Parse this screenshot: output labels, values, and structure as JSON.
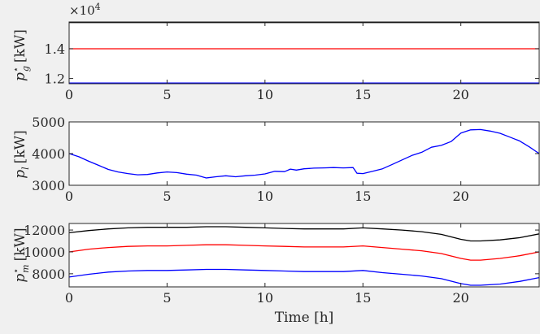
{
  "chart_data": [
    {
      "type": "line",
      "title": "",
      "xlabel": "",
      "ylabel": "p_g^⋆ [kW]",
      "ylabel_parts": {
        "base": "p",
        "sub": "g",
        "sup": "⋆",
        "unit": "[kW]"
      },
      "y_exponent_label": {
        "base": "×10",
        "power": "4"
      },
      "xlim": [
        0,
        24
      ],
      "ylim": [
        11650,
        15800
      ],
      "xticks": [
        0,
        5,
        10,
        15,
        20
      ],
      "xtick_labels": [
        "0",
        "5",
        "10",
        "15",
        "20"
      ],
      "yticks": [
        12000,
        14000
      ],
      "ytick_labels": [
        "1.2",
        "1.4"
      ],
      "grid": false,
      "series": [
        {
          "color": "#000000",
          "x": [
            0,
            24
          ],
          "y": [
            15760,
            15760
          ]
        },
        {
          "color": "#ff0000",
          "x": [
            0,
            24
          ],
          "y": [
            14000,
            14000
          ]
        },
        {
          "color": "#0000ff",
          "x": [
            0,
            24
          ],
          "y": [
            11700,
            11700
          ]
        }
      ]
    },
    {
      "type": "line",
      "title": "",
      "xlabel": "",
      "ylabel": "p_l [kW]",
      "ylabel_parts": {
        "base": "p",
        "sub": "l",
        "sup": "",
        "unit": "[kW]"
      },
      "xlim": [
        0,
        24
      ],
      "ylim": [
        3000,
        5000
      ],
      "xticks": [
        0,
        5,
        10,
        15,
        20
      ],
      "xtick_labels": [
        "0",
        "5",
        "10",
        "15",
        "20"
      ],
      "yticks": [
        3000,
        4000,
        5000
      ],
      "ytick_labels": [
        "3000",
        "4000",
        "5000"
      ],
      "grid": false,
      "series": [
        {
          "color": "#0000ff",
          "x": [
            0,
            0.5,
            1,
            1.5,
            2,
            2.5,
            3,
            3.5,
            4,
            4.5,
            5,
            5.5,
            6,
            6.5,
            7,
            7.5,
            8,
            8.5,
            9,
            9.5,
            10,
            10.5,
            11,
            11.3,
            11.6,
            12,
            12.5,
            13,
            13.5,
            14,
            14.5,
            14.7,
            15,
            15.5,
            16,
            16.5,
            17,
            17.5,
            18,
            18.5,
            19,
            19.5,
            20,
            20.5,
            21,
            21.5,
            22,
            22.5,
            23,
            23.5,
            24
          ],
          "y": [
            4000,
            3900,
            3760,
            3630,
            3500,
            3420,
            3370,
            3330,
            3340,
            3390,
            3420,
            3400,
            3350,
            3320,
            3230,
            3270,
            3300,
            3270,
            3300,
            3320,
            3360,
            3440,
            3430,
            3510,
            3480,
            3520,
            3540,
            3550,
            3560,
            3550,
            3560,
            3380,
            3370,
            3440,
            3520,
            3660,
            3800,
            3940,
            4040,
            4200,
            4260,
            4380,
            4650,
            4750,
            4760,
            4710,
            4640,
            4520,
            4400,
            4210,
            4000
          ]
        }
      ]
    },
    {
      "type": "line",
      "title": "",
      "xlabel": "Time [h]",
      "ylabel": "p_m^⋆ [kW]",
      "ylabel_parts": {
        "base": "p",
        "sub": "m",
        "sup": "⋆",
        "unit": "[kW]"
      },
      "xlim": [
        0,
        24
      ],
      "ylim": [
        6800,
        12600
      ],
      "xticks": [
        0,
        5,
        10,
        15,
        20
      ],
      "xtick_labels": [
        "0",
        "5",
        "10",
        "15",
        "20"
      ],
      "yticks": [
        8000,
        10000,
        12000
      ],
      "ytick_labels": [
        "8000",
        "10000",
        "12000"
      ],
      "grid": false,
      "series": [
        {
          "color": "#000000",
          "x": [
            0,
            1,
            2,
            3,
            4,
            5,
            6,
            7,
            8,
            9,
            10,
            11,
            12,
            13,
            14,
            15,
            16,
            17,
            18,
            19,
            20,
            20.5,
            21,
            22,
            23,
            24
          ],
          "y": [
            11750,
            11950,
            12100,
            12200,
            12250,
            12250,
            12250,
            12300,
            12300,
            12250,
            12200,
            12150,
            12100,
            12100,
            12100,
            12200,
            12100,
            12000,
            11850,
            11600,
            11150,
            11000,
            11000,
            11100,
            11300,
            11650
          ]
        },
        {
          "color": "#ff0000",
          "x": [
            0,
            1,
            2,
            3,
            4,
            5,
            6,
            7,
            8,
            9,
            10,
            11,
            12,
            13,
            14,
            15,
            16,
            17,
            18,
            19,
            20,
            20.5,
            21,
            22,
            23,
            24
          ],
          "y": [
            10000,
            10250,
            10400,
            10500,
            10550,
            10550,
            10600,
            10650,
            10650,
            10600,
            10550,
            10500,
            10450,
            10450,
            10450,
            10550,
            10400,
            10250,
            10100,
            9850,
            9400,
            9250,
            9250,
            9400,
            9650,
            10000
          ]
        },
        {
          "color": "#0000ff",
          "x": [
            0,
            1,
            2,
            3,
            4,
            5,
            6,
            7,
            8,
            9,
            10,
            11,
            12,
            13,
            14,
            15,
            16,
            17,
            18,
            19,
            20,
            20.5,
            21,
            22,
            23,
            24
          ],
          "y": [
            7700,
            7950,
            8150,
            8250,
            8300,
            8300,
            8350,
            8400,
            8400,
            8350,
            8300,
            8250,
            8200,
            8200,
            8200,
            8300,
            8100,
            7950,
            7800,
            7550,
            7100,
            6950,
            6950,
            7050,
            7300,
            7650
          ]
        }
      ]
    }
  ]
}
